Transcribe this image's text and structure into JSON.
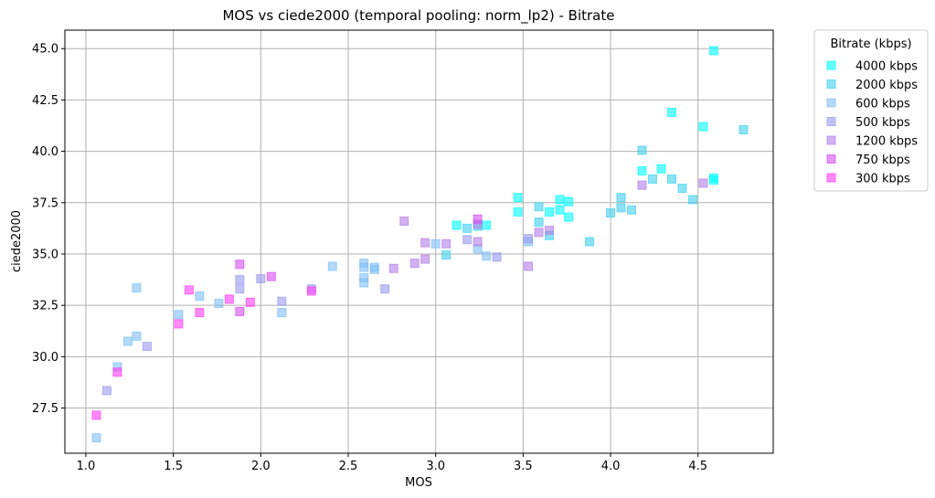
{
  "chart_data": {
    "type": "scatter",
    "title": "MOS vs ciede2000 (temporal pooling: norm_lp2) - Bitrate",
    "xlabel": "MOS",
    "ylabel": "ciede2000",
    "xlim": [
      0.88,
      4.93
    ],
    "ylim": [
      25.3,
      45.9
    ],
    "xticks": [
      1.0,
      1.5,
      2.0,
      2.5,
      3.0,
      3.5,
      4.0,
      4.5
    ],
    "xtick_labels": [
      "1.0",
      "1.5",
      "2.0",
      "2.5",
      "3.0",
      "3.5",
      "4.0",
      "4.5"
    ],
    "yticks": [
      27.5,
      30.0,
      32.5,
      35.0,
      37.5,
      40.0,
      42.5,
      45.0
    ],
    "ytick_labels": [
      "27.5",
      "30.0",
      "32.5",
      "35.0",
      "37.5",
      "40.0",
      "42.5",
      "45.0"
    ],
    "grid": true,
    "legend": {
      "title": "Bitrate (kbps)",
      "placement": "outside-top-right"
    },
    "marker": "square",
    "series": [
      {
        "name": "4000 kbps",
        "color": "#00ffff",
        "points": [
          [
            4.59,
            44.9
          ],
          [
            4.35,
            41.9
          ],
          [
            4.53,
            41.2
          ],
          [
            4.29,
            39.15
          ],
          [
            4.18,
            39.05
          ],
          [
            4.59,
            38.7
          ],
          [
            4.59,
            38.6
          ],
          [
            3.47,
            37.75
          ],
          [
            3.71,
            37.65
          ],
          [
            3.76,
            37.55
          ],
          [
            3.47,
            37.05
          ],
          [
            3.65,
            37.05
          ],
          [
            3.71,
            37.15
          ],
          [
            3.76,
            36.8
          ],
          [
            3.29,
            36.4
          ],
          [
            3.12,
            36.4
          ]
        ]
      },
      {
        "name": "2000 kbps",
        "color": "#40d0ee",
        "points": [
          [
            4.76,
            41.05
          ],
          [
            4.18,
            40.05
          ],
          [
            4.35,
            38.65
          ],
          [
            4.24,
            38.65
          ],
          [
            4.41,
            38.2
          ],
          [
            4.47,
            37.65
          ],
          [
            4.06,
            37.75
          ],
          [
            4.06,
            37.25
          ],
          [
            4.12,
            37.15
          ],
          [
            4.0,
            37.0
          ],
          [
            3.59,
            37.3
          ],
          [
            3.59,
            36.55
          ],
          [
            3.88,
            35.6
          ],
          [
            3.65,
            35.9
          ],
          [
            3.24,
            36.35
          ],
          [
            3.18,
            36.25
          ],
          [
            3.06,
            34.95
          ]
        ]
      },
      {
        "name": "600 kbps",
        "color": "#7fbff5",
        "points": [
          [
            1.06,
            26.05
          ],
          [
            1.18,
            29.5
          ],
          [
            1.24,
            30.75
          ],
          [
            1.29,
            31.0
          ],
          [
            1.29,
            33.35
          ],
          [
            1.53,
            32.05
          ],
          [
            1.65,
            32.95
          ],
          [
            1.76,
            32.6
          ],
          [
            2.12,
            32.15
          ],
          [
            2.41,
            34.4
          ],
          [
            2.59,
            34.55
          ],
          [
            2.59,
            34.35
          ],
          [
            2.59,
            33.85
          ],
          [
            2.59,
            33.6
          ],
          [
            2.65,
            34.35
          ],
          [
            2.65,
            34.25
          ],
          [
            3.24,
            35.25
          ],
          [
            3.29,
            34.9
          ],
          [
            3.53,
            35.6
          ],
          [
            3.0,
            35.5
          ]
        ]
      },
      {
        "name": "500 kbps",
        "color": "#9a9aee",
        "points": [
          [
            1.12,
            28.35
          ],
          [
            1.35,
            30.5
          ],
          [
            1.88,
            33.75
          ],
          [
            1.88,
            33.3
          ],
          [
            2.0,
            33.8
          ],
          [
            2.12,
            32.7
          ],
          [
            2.29,
            33.3
          ],
          [
            2.71,
            33.3
          ],
          [
            3.18,
            35.7
          ],
          [
            3.35,
            34.85
          ],
          [
            3.53,
            35.75
          ]
        ]
      },
      {
        "name": "1200 kbps",
        "color": "#b47ee8",
        "points": [
          [
            2.76,
            34.3
          ],
          [
            2.82,
            36.6
          ],
          [
            2.88,
            34.55
          ],
          [
            2.94,
            34.75
          ],
          [
            2.94,
            35.55
          ],
          [
            3.06,
            35.5
          ],
          [
            3.24,
            35.6
          ],
          [
            3.24,
            36.45
          ],
          [
            3.53,
            34.4
          ],
          [
            3.59,
            36.05
          ],
          [
            3.65,
            36.15
          ],
          [
            4.18,
            38.35
          ],
          [
            4.53,
            38.45
          ]
        ]
      },
      {
        "name": "750 kbps",
        "color": "#d54cf0",
        "points": [
          [
            1.88,
            32.2
          ],
          [
            1.88,
            34.5
          ],
          [
            2.06,
            33.9
          ],
          [
            3.24,
            36.7
          ]
        ]
      },
      {
        "name": "300 kbps",
        "color": "#ff3cf5",
        "points": [
          [
            1.06,
            27.15
          ],
          [
            1.18,
            29.25
          ],
          [
            1.53,
            31.6
          ],
          [
            1.59,
            33.25
          ],
          [
            1.65,
            32.15
          ],
          [
            1.82,
            32.8
          ],
          [
            1.94,
            32.65
          ],
          [
            2.29,
            33.2
          ]
        ]
      }
    ]
  }
}
